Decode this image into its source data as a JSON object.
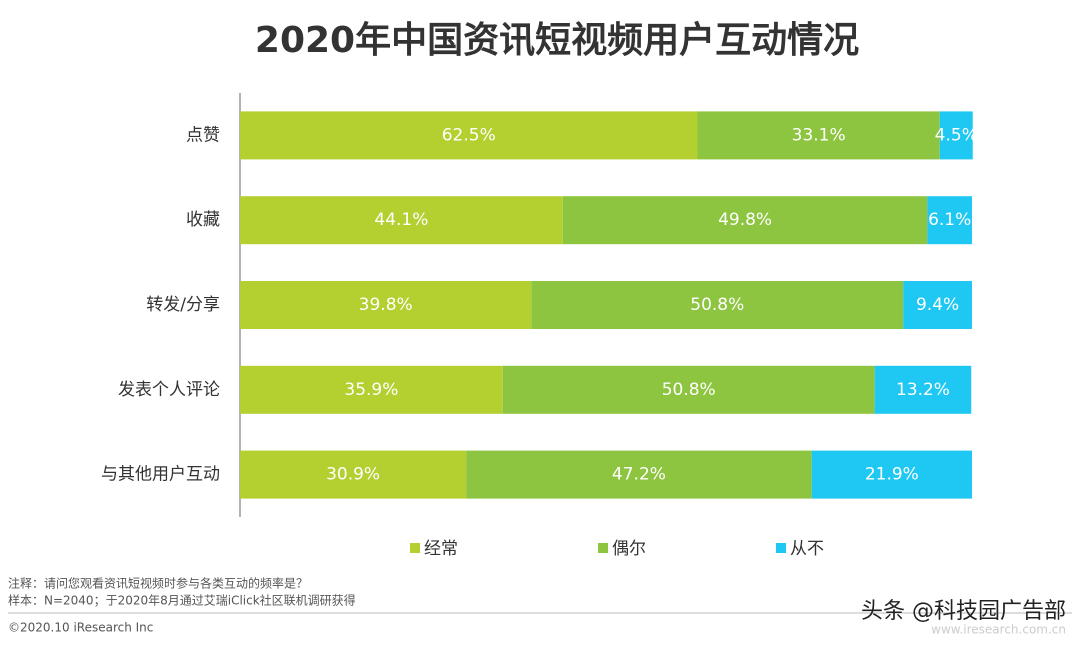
{
  "chart_data": {
    "type": "stacked_barh",
    "title": "2020年中国资讯短视频用户互动情况",
    "categories": [
      "点赞",
      "收藏",
      "转发/分享",
      "发表个人评论",
      "与其他用户互动"
    ],
    "series": [
      {
        "name": "经常",
        "color": "#b3cf30",
        "values": [
          62.5,
          44.1,
          39.8,
          35.9,
          30.9
        ],
        "value_labels": [
          "62.5%",
          "44.1%",
          "39.8%",
          "35.9%",
          "30.9%"
        ]
      },
      {
        "name": "偶尔",
        "color": "#8dc540",
        "values": [
          33.1,
          49.8,
          50.8,
          50.8,
          47.2
        ],
        "value_labels": [
          "33.1%",
          "49.8%",
          "50.8%",
          "50.8%",
          "47.2%"
        ]
      },
      {
        "name": "从不",
        "color": "#1fc8f2",
        "values": [
          4.5,
          6.1,
          9.4,
          13.2,
          21.9
        ],
        "value_labels": [
          "4.5%",
          "6.1%",
          "9.4%",
          "13.2%",
          "21.9%"
        ]
      }
    ],
    "xlim": [
      0,
      100
    ],
    "legend": "bottom",
    "notes": [
      "注释：请问您观看资讯短视频时参与各类互动的频率是？",
      "样本：N=2040；于2020年8月通过艾瑞iClick社区联机调研获得"
    ],
    "copyright": "©2020.10 iResearch Inc",
    "source_url": "www.iresearch.com.cn",
    "watermark": "头条 @科技园广告部"
  }
}
